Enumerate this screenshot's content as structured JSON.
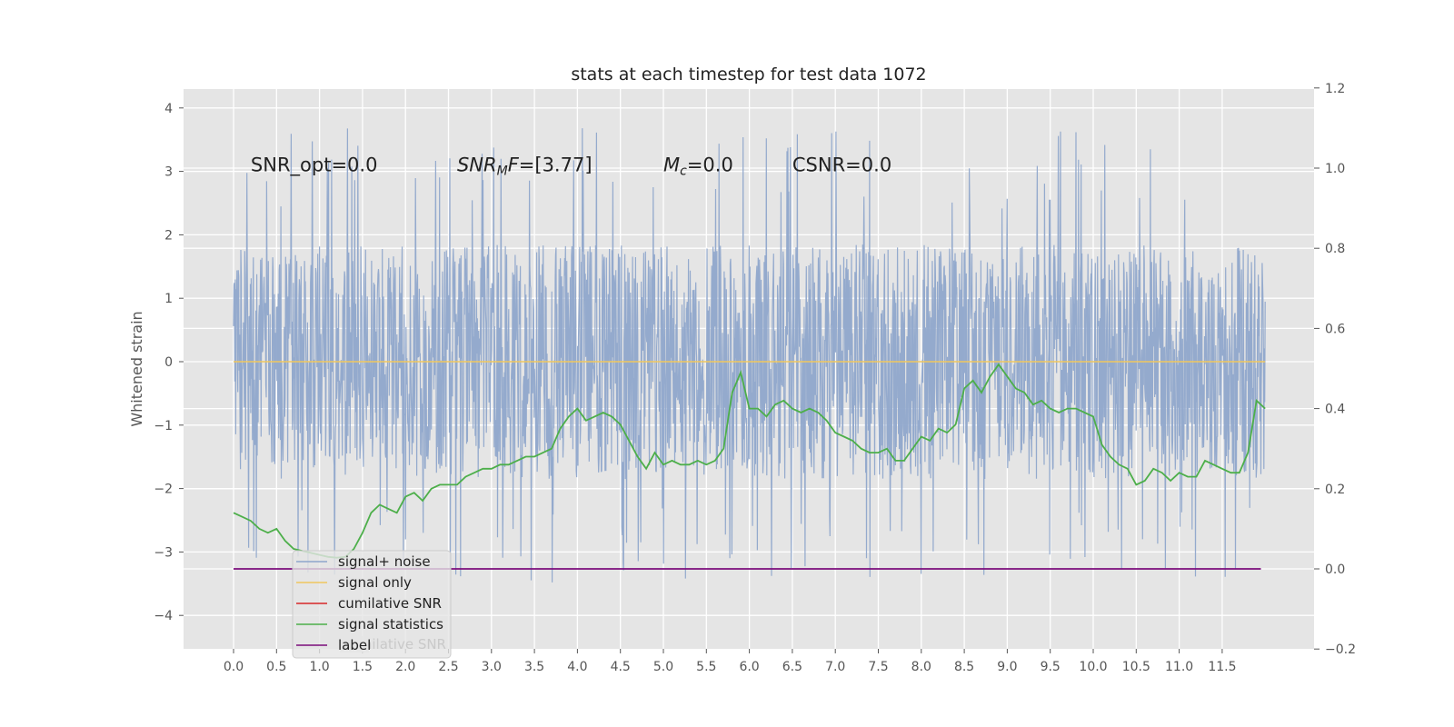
{
  "chart_data": {
    "type": "line",
    "title": "stats at each timestep for test data 1072",
    "ylabel": "Whitened strain",
    "xlim": [
      -0.5,
      12.7
    ],
    "ylim": [
      -4.5,
      4.3
    ],
    "y2lim": [
      -0.2,
      1.2
    ],
    "x_ticks": [
      "0.0",
      "0.5",
      "1.0",
      "1.5",
      "2.0",
      "2.5",
      "3.0",
      "3.5",
      "4.0",
      "4.5",
      "5.0",
      "5.5",
      "6.0",
      "6.5",
      "7.0",
      "7.5",
      "8.0",
      "8.5",
      "9.0",
      "9.5",
      "10.0",
      "10.5",
      "11.0",
      "11.5"
    ],
    "y_ticks": [
      "4",
      "3",
      "2",
      "1",
      "0",
      "−1",
      "−2",
      "−3",
      "−4"
    ],
    "y2_ticks": [
      "1.2",
      "1.0",
      "0.8",
      "0.6",
      "0.4",
      "0.2",
      "0.0",
      "−0.2"
    ],
    "grid": true,
    "legend_position": "lower-left",
    "annotations": [
      {
        "text": "SNR_opt=0.0",
        "x": 0.2,
        "y": 3.1
      },
      {
        "text": "SNR",
        "sub": "M",
        "rest": "F=[3.77]",
        "x": 2.6,
        "y": 3.1
      },
      {
        "text": "M",
        "sub": "c",
        "rest": "=0.0",
        "x": 5.0,
        "y": 3.1
      },
      {
        "text": "CSNR=0.0",
        "x": 6.5,
        "y": 3.1
      }
    ],
    "series": [
      {
        "name": "signal+ noise",
        "color": "#8fa6cb",
        "axis": "left",
        "description": "whitened noise, roughly +/-1.8 sigma band with peaks near +/-3.5",
        "x_range": [
          0.0,
          12.0
        ]
      },
      {
        "name": "signal only",
        "color": "#f0c75e",
        "axis": "left",
        "x": [
          0.0,
          12.0
        ],
        "values": [
          0.0,
          0.0
        ]
      },
      {
        "name": "cumilative SNR",
        "color": "#d62728",
        "axis": "left",
        "x": [],
        "values": []
      },
      {
        "name": "signal statistics",
        "color": "#4daf4a",
        "axis": "right",
        "x": [
          0.0,
          0.1,
          0.2,
          0.3,
          0.4,
          0.5,
          0.6,
          0.7,
          0.8,
          0.9,
          1.0,
          1.1,
          1.2,
          1.3,
          1.4,
          1.5,
          1.6,
          1.7,
          1.8,
          1.9,
          2.0,
          2.1,
          2.2,
          2.3,
          2.4,
          2.5,
          2.6,
          2.7,
          2.8,
          2.9,
          3.0,
          3.1,
          3.2,
          3.3,
          3.4,
          3.5,
          3.6,
          3.7,
          3.8,
          3.9,
          4.0,
          4.1,
          4.2,
          4.3,
          4.4,
          4.5,
          4.6,
          4.7,
          4.8,
          4.9,
          5.0,
          5.1,
          5.2,
          5.3,
          5.4,
          5.5,
          5.6,
          5.7,
          5.8,
          5.9,
          6.0,
          6.1,
          6.2,
          6.3,
          6.4,
          6.5,
          6.6,
          6.7,
          6.8,
          6.9,
          7.0,
          7.1,
          7.2,
          7.3,
          7.4,
          7.5,
          7.6,
          7.7,
          7.8,
          7.9,
          8.0,
          8.1,
          8.2,
          8.3,
          8.4,
          8.5,
          8.6,
          8.7,
          8.8,
          8.9,
          9.0,
          9.1,
          9.2,
          9.3,
          9.4,
          9.5,
          9.6,
          9.7,
          9.8,
          9.9,
          10.0,
          10.1,
          10.2,
          10.3,
          10.4,
          10.5,
          10.6,
          10.7,
          10.8,
          10.9,
          11.0,
          11.1,
          11.2,
          11.3,
          11.4,
          11.5,
          11.6,
          11.7,
          11.8,
          11.9,
          12.0
        ],
        "values": [
          0.14,
          0.13,
          0.12,
          0.1,
          0.09,
          0.1,
          0.07,
          0.05,
          0.045,
          0.04,
          0.035,
          0.03,
          0.028,
          0.03,
          0.05,
          0.09,
          0.14,
          0.16,
          0.15,
          0.14,
          0.18,
          0.19,
          0.17,
          0.2,
          0.21,
          0.21,
          0.21,
          0.23,
          0.24,
          0.25,
          0.25,
          0.26,
          0.26,
          0.27,
          0.28,
          0.28,
          0.29,
          0.3,
          0.35,
          0.38,
          0.4,
          0.37,
          0.38,
          0.39,
          0.38,
          0.36,
          0.32,
          0.28,
          0.25,
          0.29,
          0.26,
          0.27,
          0.26,
          0.26,
          0.27,
          0.26,
          0.27,
          0.3,
          0.44,
          0.49,
          0.4,
          0.4,
          0.38,
          0.41,
          0.42,
          0.4,
          0.39,
          0.4,
          0.39,
          0.37,
          0.34,
          0.33,
          0.32,
          0.3,
          0.29,
          0.29,
          0.3,
          0.27,
          0.27,
          0.3,
          0.33,
          0.32,
          0.35,
          0.34,
          0.36,
          0.45,
          0.47,
          0.44,
          0.48,
          0.51,
          0.48,
          0.45,
          0.44,
          0.41,
          0.42,
          0.4,
          0.39,
          0.4,
          0.4,
          0.39,
          0.38,
          0.31,
          0.28,
          0.26,
          0.25,
          0.21,
          0.22,
          0.25,
          0.24,
          0.22,
          0.24,
          0.23,
          0.23,
          0.27,
          0.26,
          0.25,
          0.24,
          0.24,
          0.29,
          0.42,
          0.4
        ]
      },
      {
        "name": "label",
        "color": "#7b0c7b",
        "axis": "right",
        "x": [
          0.0,
          11.95
        ],
        "values": [
          0.0,
          0.0
        ]
      }
    ],
    "legend_ghost_text": "cumilative SNR"
  }
}
